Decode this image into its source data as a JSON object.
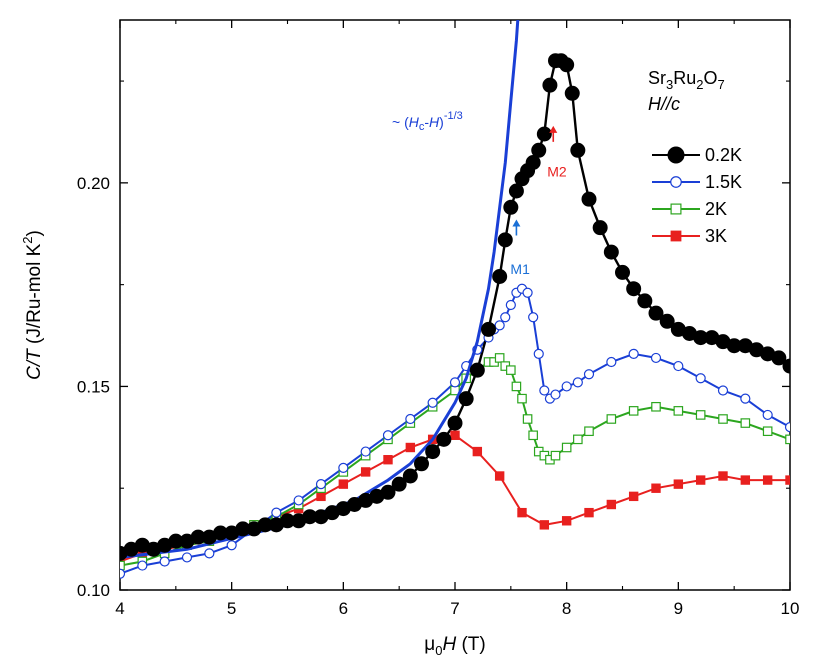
{
  "chart_data": {
    "type": "line",
    "title": "",
    "xlabel": {
      "prefix": "μ",
      "sub": "0",
      "mid": "H",
      "suffix": " (T)"
    },
    "ylabel": {
      "italic": "C/T",
      "rest": " (J/Ru-mol K",
      "sup": "2",
      "close": ")"
    },
    "xlim": [
      4,
      10
    ],
    "ylim": [
      0.1,
      0.24
    ],
    "xticks": [
      "4",
      "5",
      "6",
      "7",
      "8",
      "9",
      "10"
    ],
    "yticks": [
      "0.10",
      "0.15",
      "0.20"
    ],
    "legend_placement": "top-right",
    "legend_header": {
      "line1": {
        "a": "Sr",
        "s1": "3",
        "b": "Ru",
        "s2": "2",
        "c": "O",
        "s3": "7"
      },
      "line2": "H//c"
    },
    "series": [
      {
        "name": "0.2K",
        "color": "#000000",
        "marker": "circle-filled",
        "x": [
          4.0,
          4.1,
          4.2,
          4.3,
          4.4,
          4.5,
          4.6,
          4.7,
          4.8,
          4.9,
          5.0,
          5.1,
          5.2,
          5.3,
          5.4,
          5.5,
          5.6,
          5.7,
          5.8,
          5.9,
          6.0,
          6.1,
          6.2,
          6.3,
          6.4,
          6.5,
          6.6,
          6.7,
          6.8,
          6.9,
          7.0,
          7.1,
          7.2,
          7.3,
          7.4,
          7.45,
          7.5,
          7.55,
          7.6,
          7.65,
          7.7,
          7.75,
          7.8,
          7.85,
          7.9,
          7.95,
          8.0,
          8.05,
          8.1,
          8.2,
          8.3,
          8.4,
          8.5,
          8.6,
          8.7,
          8.8,
          8.9,
          9.0,
          9.1,
          9.2,
          9.3,
          9.4,
          9.5,
          9.6,
          9.7,
          9.8,
          9.9,
          10.0
        ],
        "y": [
          0.109,
          0.11,
          0.111,
          0.11,
          0.111,
          0.112,
          0.112,
          0.113,
          0.113,
          0.114,
          0.114,
          0.115,
          0.115,
          0.116,
          0.116,
          0.117,
          0.117,
          0.118,
          0.118,
          0.119,
          0.12,
          0.121,
          0.122,
          0.123,
          0.124,
          0.126,
          0.128,
          0.131,
          0.134,
          0.137,
          0.141,
          0.147,
          0.154,
          0.164,
          0.177,
          0.186,
          0.194,
          0.198,
          0.201,
          0.203,
          0.205,
          0.208,
          0.212,
          0.224,
          0.23,
          0.23,
          0.229,
          0.222,
          0.208,
          0.196,
          0.189,
          0.183,
          0.178,
          0.174,
          0.171,
          0.168,
          0.166,
          0.164,
          0.163,
          0.162,
          0.162,
          0.161,
          0.16,
          0.16,
          0.159,
          0.158,
          0.157,
          0.155
        ]
      },
      {
        "name": "1.5K",
        "color": "#1a3fd6",
        "marker": "circle-open",
        "x": [
          4.0,
          4.2,
          4.4,
          4.6,
          4.8,
          5.0,
          5.2,
          5.4,
          5.6,
          5.8,
          6.0,
          6.2,
          6.4,
          6.6,
          6.8,
          7.0,
          7.1,
          7.2,
          7.3,
          7.35,
          7.4,
          7.45,
          7.5,
          7.55,
          7.6,
          7.65,
          7.7,
          7.75,
          7.8,
          7.85,
          7.9,
          8.0,
          8.1,
          8.2,
          8.4,
          8.6,
          8.8,
          9.0,
          9.2,
          9.4,
          9.6,
          9.8,
          10.0
        ],
        "y": [
          0.104,
          0.106,
          0.107,
          0.108,
          0.109,
          0.111,
          0.115,
          0.119,
          0.122,
          0.126,
          0.13,
          0.134,
          0.138,
          0.142,
          0.146,
          0.151,
          0.155,
          0.159,
          0.162,
          0.164,
          0.165,
          0.167,
          0.17,
          0.173,
          0.174,
          0.173,
          0.167,
          0.158,
          0.149,
          0.147,
          0.148,
          0.15,
          0.151,
          0.153,
          0.156,
          0.158,
          0.157,
          0.155,
          0.152,
          0.149,
          0.147,
          0.143,
          0.14
        ]
      },
      {
        "name": "2K",
        "color": "#2ca61f",
        "marker": "square-open",
        "x": [
          4.0,
          4.2,
          4.4,
          4.6,
          4.8,
          5.0,
          5.2,
          5.4,
          5.6,
          5.8,
          6.0,
          6.2,
          6.4,
          6.6,
          6.8,
          7.0,
          7.1,
          7.2,
          7.3,
          7.35,
          7.4,
          7.45,
          7.5,
          7.55,
          7.6,
          7.65,
          7.7,
          7.75,
          7.8,
          7.85,
          7.9,
          8.0,
          8.1,
          8.2,
          8.4,
          8.6,
          8.8,
          9.0,
          9.2,
          9.4,
          9.6,
          9.8,
          10.0
        ],
        "y": [
          0.106,
          0.107,
          0.109,
          0.111,
          0.112,
          0.114,
          0.116,
          0.118,
          0.121,
          0.125,
          0.129,
          0.133,
          0.137,
          0.141,
          0.145,
          0.149,
          0.152,
          0.154,
          0.156,
          0.156,
          0.157,
          0.155,
          0.154,
          0.15,
          0.147,
          0.142,
          0.138,
          0.134,
          0.133,
          0.132,
          0.133,
          0.135,
          0.137,
          0.139,
          0.142,
          0.144,
          0.145,
          0.144,
          0.143,
          0.142,
          0.141,
          0.139,
          0.137
        ]
      },
      {
        "name": "3K",
        "color": "#e8201f",
        "marker": "square-filled",
        "x": [
          4.0,
          4.2,
          4.4,
          4.6,
          4.8,
          5.0,
          5.2,
          5.4,
          5.6,
          5.8,
          6.0,
          6.2,
          6.4,
          6.6,
          6.8,
          7.0,
          7.2,
          7.4,
          7.6,
          7.8,
          8.0,
          8.2,
          8.4,
          8.6,
          8.8,
          9.0,
          9.2,
          9.4,
          9.6,
          9.8,
          10.0
        ],
        "y": [
          0.107,
          0.109,
          0.11,
          0.111,
          0.112,
          0.114,
          0.116,
          0.118,
          0.12,
          0.123,
          0.126,
          0.129,
          0.132,
          0.135,
          0.137,
          0.138,
          0.134,
          0.128,
          0.119,
          0.116,
          0.117,
          0.119,
          0.121,
          0.123,
          0.125,
          0.126,
          0.127,
          0.128,
          0.127,
          0.127,
          0.127
        ]
      }
    ],
    "fit": {
      "color": "#1a3fd6",
      "label": {
        "prefix": "~ (",
        "H1": "H",
        "c_sub": "c",
        "mid": "-",
        "H2": "H",
        "close": ")",
        "sup": "-1/3"
      },
      "x": [
        4.0,
        4.3,
        4.6,
        4.9,
        5.2,
        5.5,
        5.8,
        6.1,
        6.4,
        6.6,
        6.8,
        7.0,
        7.1,
        7.2,
        7.3,
        7.35,
        7.4,
        7.45,
        7.5,
        7.55,
        7.6,
        7.63
      ],
      "y": [
        0.108,
        0.109,
        0.11,
        0.112,
        0.114,
        0.116,
        0.119,
        0.122,
        0.127,
        0.131,
        0.137,
        0.146,
        0.152,
        0.161,
        0.174,
        0.183,
        0.194,
        0.205,
        0.22,
        0.235,
        0.255,
        0.27
      ]
    },
    "annotations": [
      {
        "text": "M1",
        "color": "#1a6fd6",
        "x": 7.55,
        "y_tip": 0.191,
        "y_text": 0.182
      },
      {
        "text": "M2",
        "color": "#e8201f",
        "x": 7.88,
        "y_tip": 0.214,
        "y_text": 0.206
      }
    ]
  }
}
